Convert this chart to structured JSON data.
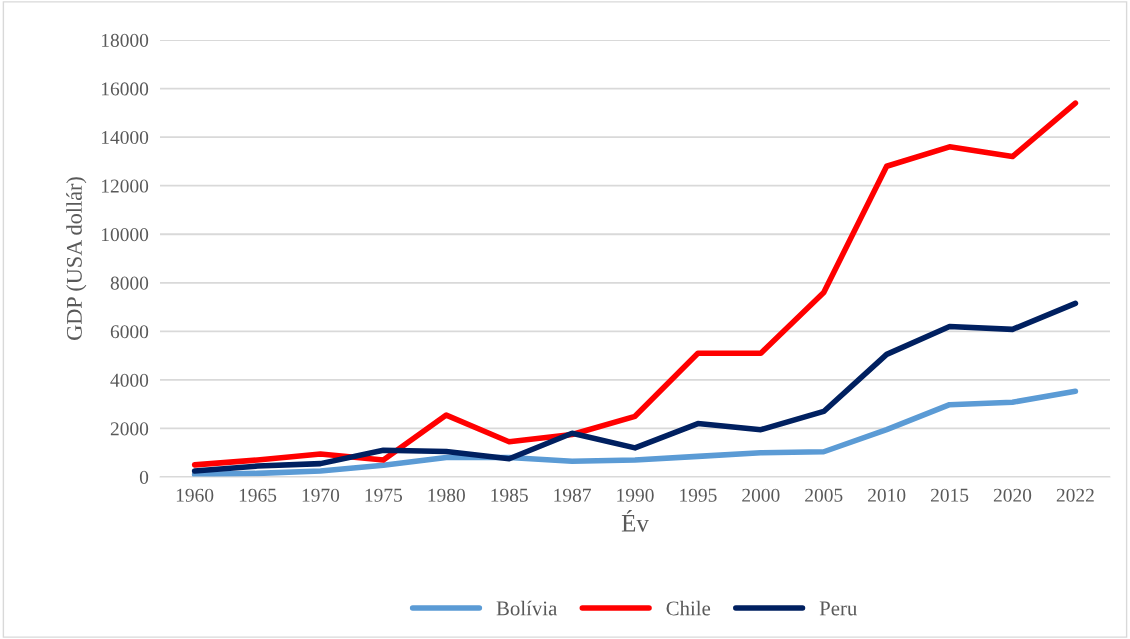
{
  "chart_data": {
    "type": "line",
    "xlabel": "Év",
    "ylabel": "GDP (USA dollár)",
    "categories": [
      "1960",
      "1965",
      "1970",
      "1975",
      "1980",
      "1985",
      "1987",
      "1990",
      "1995",
      "2000",
      "2005",
      "2010",
      "2015",
      "2020",
      "2022"
    ],
    "series": [
      {
        "name": "Bolívia",
        "color": "#5b9bd5",
        "values": [
          100,
          150,
          250,
          480,
          800,
          800,
          650,
          700,
          850,
          1000,
          1040,
          1950,
          2980,
          3080,
          3530
        ]
      },
      {
        "name": "Chile",
        "color": "#ff0000",
        "values": [
          500,
          700,
          950,
          700,
          2550,
          1450,
          1750,
          2500,
          5100,
          5100,
          7600,
          12800,
          13600,
          13200,
          15400
        ]
      },
      {
        "name": "Peru",
        "color": "#002060",
        "values": [
          250,
          450,
          550,
          1100,
          1050,
          750,
          1800,
          1200,
          2200,
          1950,
          2700,
          5050,
          6200,
          6080,
          7150
        ]
      }
    ],
    "ylim": [
      0,
      18000
    ],
    "yticks": [
      0,
      2000,
      4000,
      6000,
      8000,
      10000,
      12000,
      14000,
      16000,
      18000
    ],
    "grid": "y",
    "legend": "bottom",
    "marker": "none",
    "line_style": "solid"
  }
}
